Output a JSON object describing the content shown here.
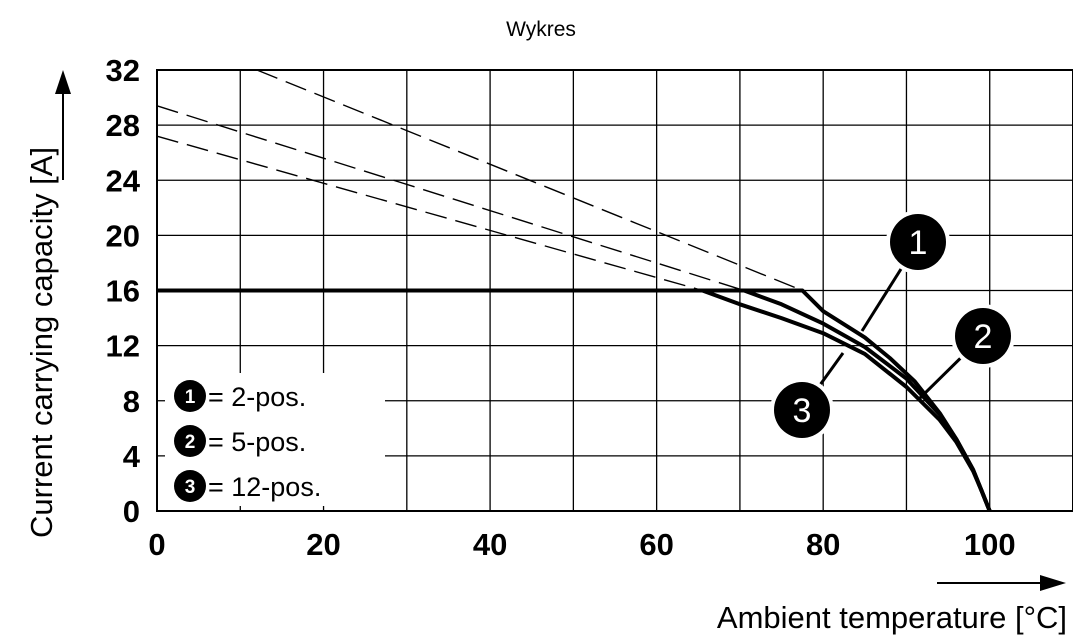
{
  "chart_data": {
    "type": "line",
    "title": "Wykres",
    "xlabel": "Ambient temperature [°C]",
    "ylabel": "Current carrying capacity [A]",
    "xlim": [
      0,
      110
    ],
    "ylim": [
      0,
      32
    ],
    "x_ticks": [
      "0",
      "20",
      "40",
      "60",
      "80",
      "100"
    ],
    "y_ticks": [
      "0",
      "4",
      "8",
      "12",
      "16",
      "20",
      "24",
      "28",
      "32"
    ],
    "grid": true,
    "legend_position": "bottom-left",
    "legend": [
      {
        "marker": "1",
        "text": "= 2-pos."
      },
      {
        "marker": "2",
        "text": "= 5-pos."
      },
      {
        "marker": "3",
        "text": "= 12-pos."
      }
    ],
    "series": [
      {
        "marker": "1",
        "x": [
          0,
          77.5,
          80,
          85,
          88,
          91,
          94,
          96,
          98,
          99,
          100
        ],
        "y": [
          16,
          16,
          14.5,
          12.6,
          11.1,
          9.4,
          7.1,
          5.2,
          3,
          1.5,
          0
        ],
        "derating_x": [
          12,
          77.5
        ],
        "derating_y": [
          32,
          16
        ]
      },
      {
        "marker": "2",
        "x": [
          0,
          70.5,
          75,
          80,
          85,
          90,
          94,
          96,
          98,
          99,
          100
        ],
        "y": [
          16,
          16,
          15,
          13.6,
          11.9,
          9.6,
          7,
          5.2,
          3,
          1.5,
          0
        ],
        "derating_x": [
          0,
          70.5
        ],
        "derating_y": [
          29.4,
          16
        ]
      },
      {
        "marker": "3",
        "x": [
          0,
          65.5,
          70,
          75,
          80,
          85,
          90,
          94,
          96,
          98,
          99,
          100
        ],
        "y": [
          16,
          16,
          15,
          14,
          12.9,
          11.4,
          9,
          6.6,
          5,
          2.9,
          1.5,
          0
        ],
        "derating_x": [
          0,
          65.5
        ],
        "derating_y": [
          27.2,
          16
        ]
      }
    ]
  }
}
